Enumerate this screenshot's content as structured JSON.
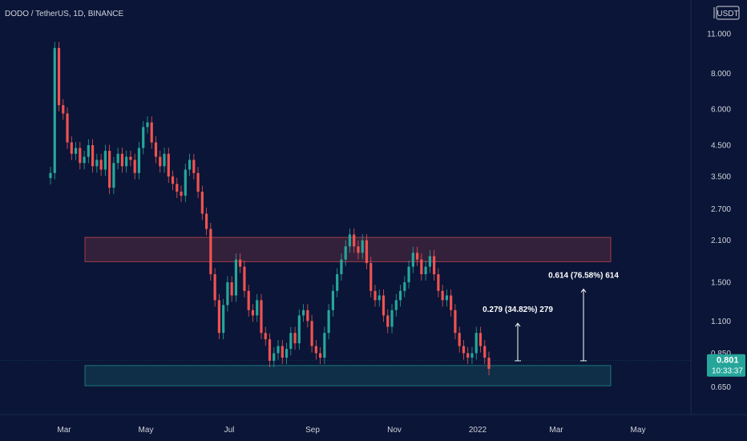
{
  "chart_data": {
    "type": "candlestick",
    "title": "DODO / TetherUS, 1D, BINANCE",
    "scale": "log",
    "currency": "USDT",
    "ylim": [
      0.58,
      13.5
    ],
    "price_ticks": [
      "11.000",
      "8.000",
      "6.000",
      "4.500",
      "3.500",
      "2.700",
      "2.100",
      "1.500",
      "1.100",
      "0.850",
      "0.650"
    ],
    "price_tick_values": [
      11.0,
      8.0,
      6.0,
      4.5,
      3.5,
      2.7,
      2.1,
      1.5,
      1.1,
      0.85,
      0.65
    ],
    "time_labels": [
      "Mar",
      "May",
      "Jul",
      "Sep",
      "Nov",
      "2022",
      "Mar",
      "May"
    ],
    "current_price": "0.801",
    "countdown": "10:33:37",
    "grid": false,
    "colors": {
      "up": "#26a69a",
      "down": "#ef5350",
      "background": "#0a1537",
      "text": "#d1d4dc",
      "accent": "#26a69a"
    },
    "zones": [
      {
        "name": "resistance",
        "from": 1.77,
        "to": 2.15,
        "color": "#ef5350"
      },
      {
        "name": "support",
        "from": 0.655,
        "to": 0.77,
        "color": "#26a69a"
      }
    ],
    "annotations": [
      {
        "text": "0.279 (34.82%) 279"
      },
      {
        "text": "0.614 (76.58%) 614"
      }
    ],
    "series": [
      {
        "name": "price",
        "values": [
          3.6,
          9.8,
          6.2,
          5.8,
          4.6,
          4.2,
          4.4,
          3.9,
          4.1,
          4.5,
          3.8,
          4.0,
          3.7,
          4.3,
          3.2,
          3.9,
          4.2,
          3.8,
          4.1,
          4.0,
          3.6,
          4.4,
          5.2,
          5.4,
          4.6,
          4.1,
          3.8,
          4.2,
          3.5,
          3.3,
          3.1,
          3.0,
          3.7,
          4.0,
          3.6,
          3.1,
          2.6,
          2.3,
          1.6,
          1.3,
          1.0,
          1.25,
          1.5,
          1.35,
          1.8,
          1.7,
          1.4,
          1.2,
          1.15,
          1.3,
          1.0,
          0.95,
          0.8,
          0.85,
          0.9,
          0.82,
          0.88,
          1.0,
          0.92,
          1.15,
          1.2,
          1.1,
          0.9,
          0.85,
          0.82,
          1.0,
          1.2,
          1.4,
          1.6,
          1.8,
          2.0,
          2.2,
          2.0,
          1.9,
          2.1,
          1.75,
          1.4,
          1.3,
          1.35,
          1.15,
          1.05,
          1.2,
          1.3,
          1.4,
          1.5,
          1.7,
          1.9,
          1.8,
          1.6,
          1.7,
          1.85,
          1.6,
          1.4,
          1.3,
          1.35,
          1.2,
          1.0,
          0.9,
          0.85,
          0.82,
          0.85,
          1.0,
          0.9,
          0.82,
          0.75
        ]
      }
    ]
  }
}
